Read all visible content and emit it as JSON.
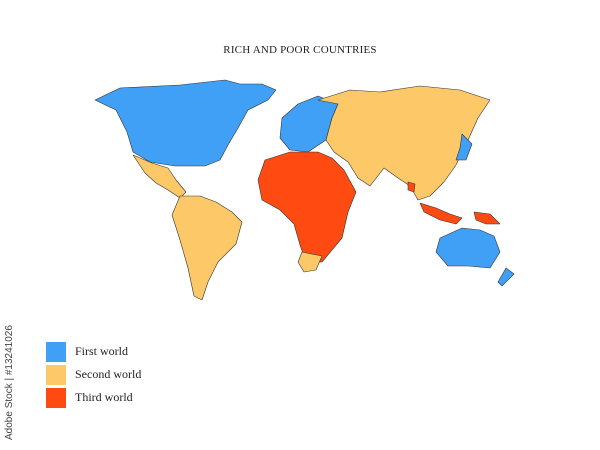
{
  "title": "RICH AND POOR COUNTRIES",
  "colors": {
    "first_world": "#3fa0f5",
    "second_world": "#fcc868",
    "third_world": "#ff4b12"
  },
  "legend": [
    {
      "label": "First world",
      "color": "#3fa0f5"
    },
    {
      "label": "Second world",
      "color": "#fcc868"
    },
    {
      "label": "Third world",
      "color": "#ff4b12"
    }
  ],
  "regions": [
    {
      "name": "North America",
      "category": "first_world"
    },
    {
      "name": "Europe",
      "category": "first_world"
    },
    {
      "name": "Japan",
      "category": "first_world"
    },
    {
      "name": "Australia",
      "category": "first_world"
    },
    {
      "name": "New Zealand",
      "category": "first_world"
    },
    {
      "name": "Latin America",
      "category": "second_world"
    },
    {
      "name": "Asia",
      "category": "second_world"
    },
    {
      "name": "South Africa",
      "category": "second_world"
    },
    {
      "name": "Africa",
      "category": "third_world"
    },
    {
      "name": "Indonesia",
      "category": "third_world"
    },
    {
      "name": "Papua New Guinea",
      "category": "third_world"
    },
    {
      "name": "Bangladesh",
      "category": "third_world"
    }
  ],
  "watermark": "Adobe Stock | #13241026"
}
